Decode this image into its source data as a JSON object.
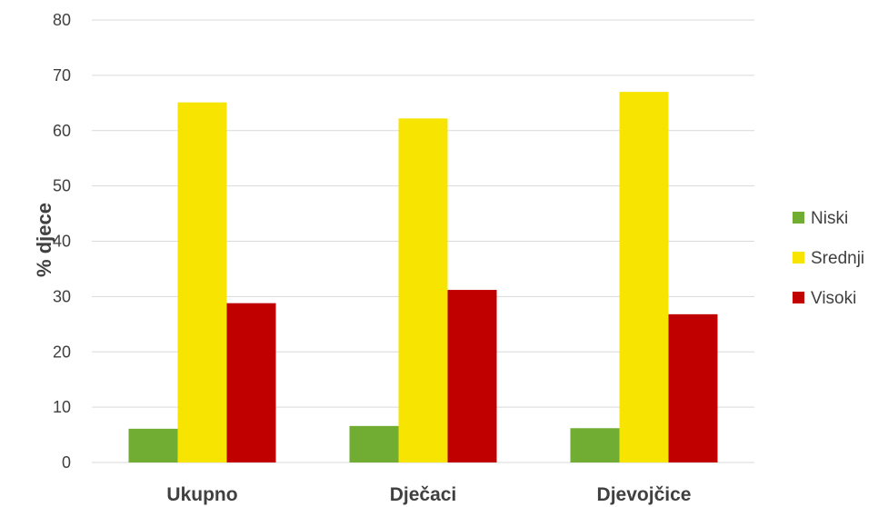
{
  "chart_data": {
    "type": "bar",
    "categories": [
      "Ukupno",
      "Dječaci",
      "Djevojčice"
    ],
    "series": [
      {
        "name": "Niski",
        "color": "#70ad32",
        "values": [
          6.1,
          6.6,
          6.2
        ]
      },
      {
        "name": "Srednji",
        "color": "#f7e400",
        "values": [
          65.1,
          62.2,
          67.0
        ]
      },
      {
        "name": "Visoki",
        "color": "#c00000",
        "values": [
          28.8,
          31.2,
          26.8
        ]
      }
    ],
    "title": "",
    "xlabel": "",
    "ylabel": "% djece",
    "ylim": [
      0,
      80
    ],
    "yticks": [
      "0",
      "10",
      "20",
      "30",
      "40",
      "50",
      "60",
      "70",
      "80"
    ],
    "grid": true,
    "legend_position": "right"
  }
}
